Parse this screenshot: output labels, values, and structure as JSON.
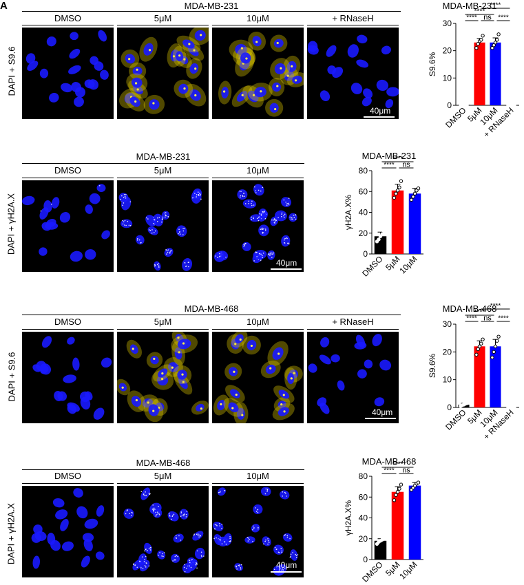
{
  "panel_letter": "A",
  "rows": [
    {
      "title": "MDA-MB-231",
      "ylabel": "DAPI + S9.6",
      "conditions": [
        "DMSO",
        "5μM",
        "10μM",
        "+ RNaseH"
      ],
      "scale_label": "40μm",
      "stain": "S9.6"
    },
    {
      "title": "MDA-MB-231",
      "ylabel": "DAPI + γH2A.X",
      "conditions": [
        "DMSO",
        "5μM",
        "10μM"
      ],
      "scale_label": "40μm",
      "stain": "yH2AX"
    },
    {
      "title": "MDA-MB-468",
      "ylabel": "DAPI + S9.6",
      "conditions": [
        "DMSO",
        "5μM",
        "10μM",
        "+ RNaseH"
      ],
      "scale_label": "40μm",
      "stain": "S9.6"
    },
    {
      "title": "MDA-MB-468",
      "ylabel": "DAPI + γH2A.X",
      "conditions": [
        "DMSO",
        "5μM",
        "10μM"
      ],
      "scale_label": "40μm",
      "stain": "yH2AX"
    }
  ],
  "colors": {
    "DMSO": "#000000",
    "5μM": "#ff0000",
    "10μM": "#0000ff",
    "+ RNaseH": "#000000",
    "nuclei": "#1a1aff",
    "s96": "#e8d200"
  },
  "chart_data": [
    {
      "type": "bar",
      "title": "MDA-MB-231",
      "ylabel": "S9.6%",
      "categories": [
        "DMSO",
        "5μM",
        "10μM",
        "+ RNaseH"
      ],
      "values": [
        0.2,
        23,
        23,
        0.1
      ],
      "errors": [
        0.1,
        1.5,
        1.7,
        0.1
      ],
      "points": [
        [
          0.1,
          0.2,
          0.3,
          0.2,
          0.1
        ],
        [
          21,
          22.5,
          23.5,
          24,
          25.5
        ],
        [
          21,
          22,
          23,
          24,
          26
        ]
      ],
      "ylim": [
        0,
        30
      ],
      "yticks": [
        0,
        10,
        20,
        30
      ],
      "significance": [
        {
          "from": 0,
          "to": 1,
          "label": "****",
          "level": 1
        },
        {
          "from": 1,
          "to": 2,
          "label": "ns",
          "level": 1
        },
        {
          "from": 2,
          "to": 3,
          "label": "****",
          "level": 1
        },
        {
          "from": 0,
          "to": 2,
          "label": "****",
          "level": 2
        },
        {
          "from": 1,
          "to": 3,
          "label": "****",
          "level": 3
        }
      ]
    },
    {
      "type": "bar",
      "title": "MDA-MB-231",
      "ylabel": "γH2A.X%",
      "categories": [
        "DMSO",
        "5μM",
        "10μM"
      ],
      "values": [
        17,
        61,
        58
      ],
      "errors": [
        4,
        6,
        5
      ],
      "points": [
        [
          12,
          14,
          17,
          19,
          22
        ],
        [
          54,
          58,
          61,
          64,
          70
        ],
        [
          52,
          55,
          58,
          61,
          63
        ]
      ],
      "ylim": [
        0,
        80
      ],
      "yticks": [
        0,
        20,
        40,
        60,
        80
      ],
      "significance": [
        {
          "from": 0,
          "to": 1,
          "label": "****",
          "level": 1
        },
        {
          "from": 1,
          "to": 2,
          "label": "ns",
          "level": 1
        },
        {
          "from": 0,
          "to": 2,
          "label": "****",
          "level": 2
        }
      ]
    },
    {
      "type": "bar",
      "title": "MDA-MB-468",
      "ylabel": "S9.6%",
      "categories": [
        "DMSO",
        "5μM",
        "10μM",
        "+ RNaseH"
      ],
      "values": [
        1,
        22,
        22,
        0.1
      ],
      "errors": [
        0.5,
        2,
        2.5,
        0.1
      ],
      "points": [
        [
          0.5,
          0.8,
          1,
          1.3,
          1.5
        ],
        [
          19,
          21,
          22,
          23,
          24.5
        ],
        [
          18,
          20,
          22,
          24,
          25.5
        ]
      ],
      "ylim": [
        0,
        30
      ],
      "yticks": [
        0,
        10,
        20,
        30
      ],
      "significance": [
        {
          "from": 0,
          "to": 1,
          "label": "****",
          "level": 1
        },
        {
          "from": 1,
          "to": 2,
          "label": "ns",
          "level": 1
        },
        {
          "from": 2,
          "to": 3,
          "label": "****",
          "level": 1
        },
        {
          "from": 0,
          "to": 2,
          "label": "****",
          "level": 2
        },
        {
          "from": 1,
          "to": 3,
          "label": "****",
          "level": 3
        }
      ]
    },
    {
      "type": "bar",
      "title": "MDA-MB-468",
      "ylabel": "γH2A.X%",
      "categories": [
        "DMSO",
        "5μM",
        "10μM"
      ],
      "values": [
        18,
        65,
        71
      ],
      "errors": [
        2,
        5,
        3
      ],
      "points": [
        [
          15,
          17,
          18,
          19,
          21
        ],
        [
          57,
          62,
          65,
          68,
          72
        ],
        [
          67,
          69,
          71,
          73,
          74
        ]
      ],
      "ylim": [
        0,
        80
      ],
      "yticks": [
        0,
        20,
        40,
        60,
        80
      ],
      "significance": [
        {
          "from": 0,
          "to": 1,
          "label": "****",
          "level": 1
        },
        {
          "from": 1,
          "to": 2,
          "label": "ns",
          "level": 1
        },
        {
          "from": 0,
          "to": 2,
          "label": "****",
          "level": 2
        }
      ]
    }
  ]
}
